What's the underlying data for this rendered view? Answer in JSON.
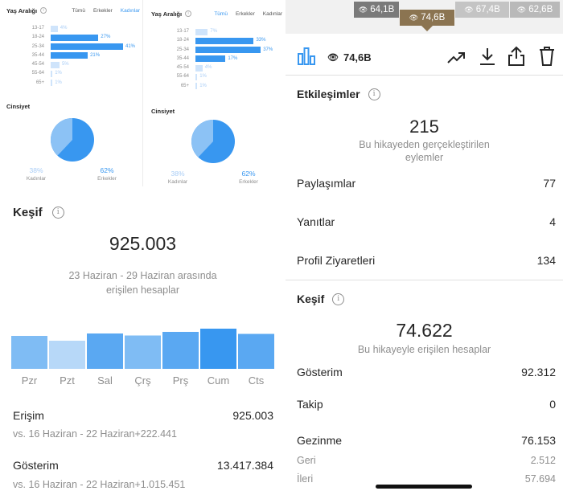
{
  "left": {
    "demographics": [
      {
        "age_title": "Yaş Aralığı",
        "tabs": [
          "Tümü",
          "Erkekler",
          "Kadınlar"
        ],
        "active_tab": 2,
        "ages": [
          {
            "label": "13-17",
            "pct": "4%",
            "value": 4
          },
          {
            "label": "18-24",
            "pct": "27%",
            "value": 27
          },
          {
            "label": "25-34",
            "pct": "41%",
            "value": 41
          },
          {
            "label": "35-44",
            "pct": "21%",
            "value": 21
          },
          {
            "label": "45-54",
            "pct": "5%",
            "value": 5
          },
          {
            "label": "55-64",
            "pct": "1%",
            "value": 1
          },
          {
            "label": "65+",
            "pct": "1%",
            "value": 1
          }
        ],
        "gender_title": "Cinsiyet",
        "female_pct": "38%",
        "female_label": "Kadınlar",
        "male_pct": "62%",
        "male_label": "Erkekler",
        "female_share": 38
      },
      {
        "age_title": "Yaş Aralığı",
        "tabs": [
          "Tümü",
          "Erkekler",
          "Kadınlar"
        ],
        "active_tab": 0,
        "ages": [
          {
            "label": "13-17",
            "pct": "7%",
            "value": 7
          },
          {
            "label": "18-24",
            "pct": "33%",
            "value": 33
          },
          {
            "label": "25-34",
            "pct": "37%",
            "value": 37
          },
          {
            "label": "35-44",
            "pct": "17%",
            "value": 17
          },
          {
            "label": "45-54",
            "pct": "4%",
            "value": 4
          },
          {
            "label": "55-64",
            "pct": "1%",
            "value": 1
          },
          {
            "label": "65+",
            "pct": "1%",
            "value": 1
          }
        ],
        "gender_title": "Cinsiyet",
        "female_pct": "38%",
        "female_label": "Kadınlar",
        "male_pct": "62%",
        "male_label": "Erkekler",
        "female_share": 38
      }
    ],
    "discovery": {
      "title": "Keşif",
      "reach_total": "925.003",
      "range_line1": "23 Haziran - 29 Haziran arasında",
      "range_line2": "erişilen hesaplar",
      "reach_label": "Erişim",
      "reach_value": "925.003",
      "reach_compare": "vs. 16 Haziran - 22 Haziran+222.441",
      "impressions_label": "Gösterim",
      "impressions_value": "13.417.384",
      "impressions_compare": "vs. 16 Haziran - 22 Haziran+1.015.451"
    }
  },
  "chart_data": {
    "type": "bar",
    "categories": [
      "Pzr",
      "Pzt",
      "Sal",
      "Çrş",
      "Prş",
      "Cum",
      "Cts"
    ],
    "values": [
      82,
      70,
      88,
      83,
      92,
      100,
      87
    ],
    "colors": [
      "#7fbcf4",
      "#b7d8f8",
      "#5aa8f2",
      "#7fbcf4",
      "#5aa8f2",
      "#3897f0",
      "#5aa8f2"
    ],
    "ylim": [
      0,
      100
    ]
  },
  "right": {
    "stories": [
      {
        "views": "64,1B",
        "color": "#7a7a7a"
      },
      {
        "views": "74,6B",
        "color": "#8b7451",
        "selected": true
      },
      {
        "views": "67,4B",
        "color": "#c4c4c4"
      },
      {
        "views": "62,6B",
        "color": "#b9b9b9"
      }
    ],
    "toolbar": {
      "views": "74,6B",
      "icons": [
        "bar-chart-icon",
        "eye-icon",
        "trending-icon",
        "download-icon",
        "share-icon",
        "trash-icon"
      ]
    },
    "interactions": {
      "title": "Etkileşimler",
      "total": "215",
      "desc_line1": "Bu hikayeden gerçekleştirilen",
      "desc_line2": "eylemler",
      "rows": [
        {
          "label": "Paylaşımlar",
          "value": "77"
        },
        {
          "label": "Yanıtlar",
          "value": "4"
        },
        {
          "label": "Profil Ziyaretleri",
          "value": "134"
        }
      ]
    },
    "discovery": {
      "title": "Keşif",
      "total": "74.622",
      "desc": "Bu hikayeyle erişilen hesaplar",
      "impressions_label": "Gösterim",
      "impressions_value": "92.312",
      "follows_label": "Takip",
      "follows_value": "0",
      "navigation_label": "Gezinme",
      "navigation_value": "76.153",
      "back_label": "Geri",
      "back_value": "2.512",
      "forward_label": "İleri",
      "forward_value": "57.694"
    }
  },
  "colors": {
    "accent": "#3897f0",
    "text": "#262626",
    "muted": "#8e8e8e"
  }
}
